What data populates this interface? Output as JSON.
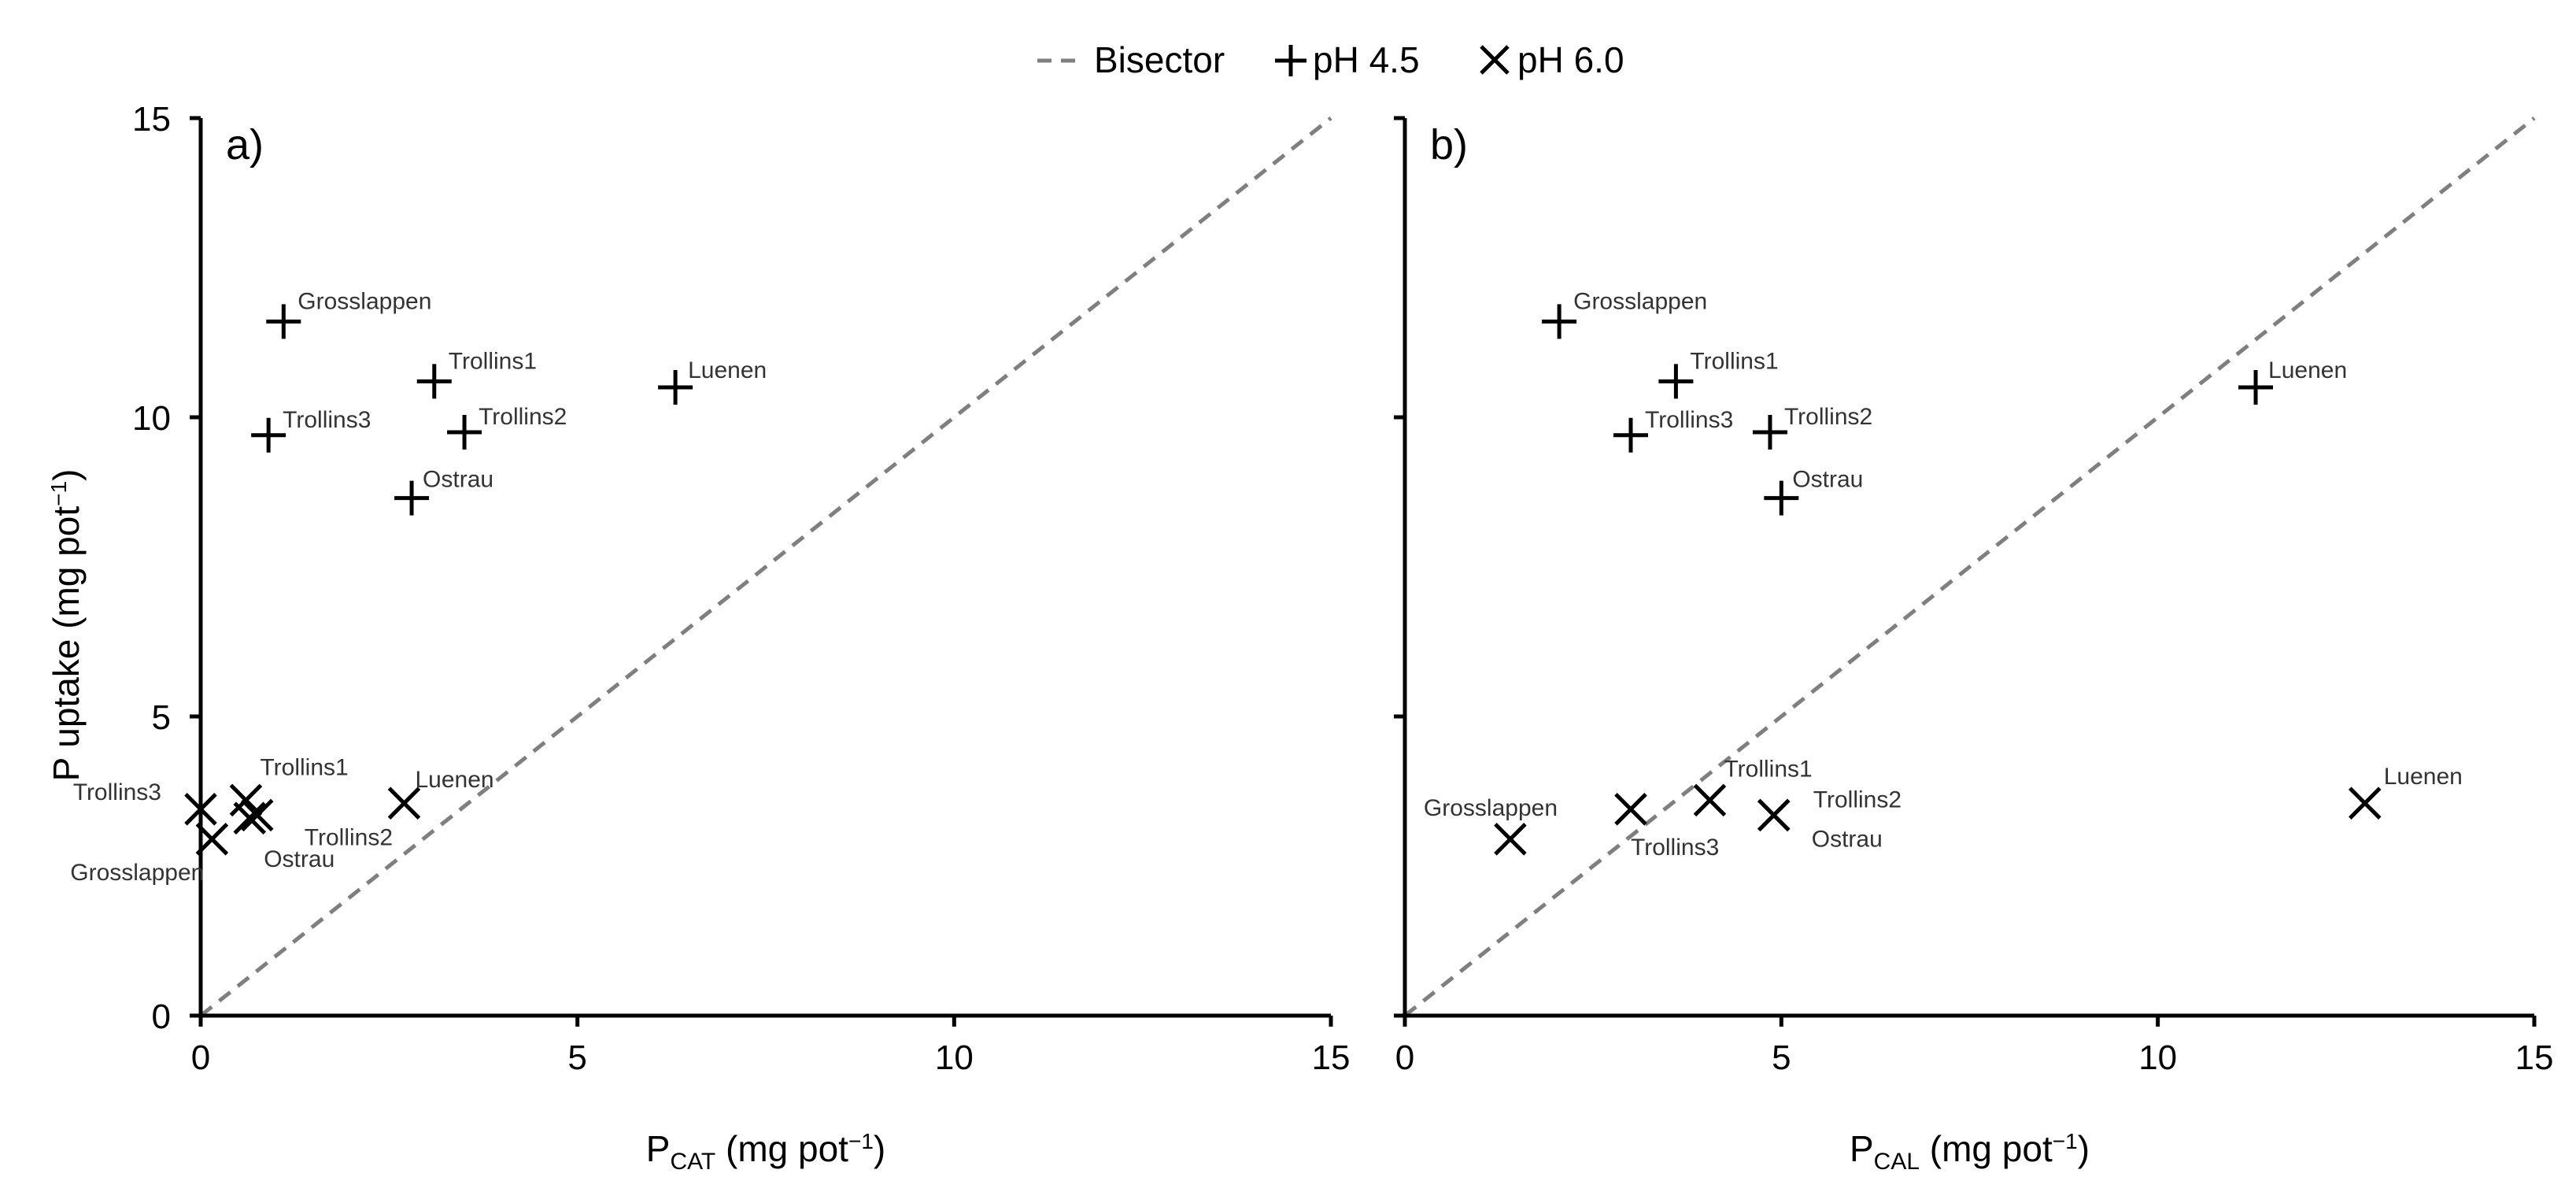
{
  "legend": {
    "bisector_label": "Bisector",
    "ph45_label": "pH 4.5",
    "ph60_label": "pH 6.0"
  },
  "y_axis": {
    "label_main": "P uptake (mg pot",
    "label_sup": "−1",
    "label_close": ")"
  },
  "chart_data": [
    {
      "type": "scatter",
      "panel_label": "a)",
      "xlabel_main": "P",
      "xlabel_sub": "CAT",
      "xlabel_rest": " (mg pot",
      "xlabel_sup": "−1",
      "xlabel_close": ")",
      "ylabel": "P uptake (mg pot−1)",
      "xlim": [
        0,
        15
      ],
      "ylim": [
        0,
        15
      ],
      "xticks": [
        "0",
        "5",
        "10",
        "15"
      ],
      "yticks": [
        "0",
        "5",
        "10",
        "15"
      ],
      "series": [
        {
          "name": "pH 4.5",
          "marker": "plus",
          "points": [
            {
              "label": "Grosslappen",
              "x": 1.1,
              "y": 11.6
            },
            {
              "label": "Trollins1",
              "x": 3.1,
              "y": 10.6
            },
            {
              "label": "Trollins3",
              "x": 0.9,
              "y": 9.7
            },
            {
              "label": "Trollins2",
              "x": 3.5,
              "y": 9.75
            },
            {
              "label": "Ostrau",
              "x": 2.8,
              "y": 8.65
            },
            {
              "label": "Luenen",
              "x": 6.3,
              "y": 10.5
            }
          ]
        },
        {
          "name": "pH 6.0",
          "marker": "cross",
          "points": [
            {
              "label": "Trollins3",
              "x": 0.0,
              "y": 3.45
            },
            {
              "label": "Trollins1",
              "x": 0.6,
              "y": 3.6
            },
            {
              "label": "Trollins2",
              "x": 0.75,
              "y": 3.35
            },
            {
              "label": "Ostrau",
              "x": 0.65,
              "y": 3.3
            },
            {
              "label": "Grosslappen",
              "x": 0.15,
              "y": 2.95
            },
            {
              "label": "Luenen",
              "x": 2.7,
              "y": 3.55
            }
          ]
        }
      ]
    },
    {
      "type": "scatter",
      "panel_label": "b)",
      "xlabel_main": "P",
      "xlabel_sub": "CAL",
      "xlabel_rest": " (mg pot",
      "xlabel_sup": "−1",
      "xlabel_close": ")",
      "ylabel": "P uptake (mg pot−1)",
      "xlim": [
        0,
        15
      ],
      "ylim": [
        0,
        15
      ],
      "xticks": [
        "0",
        "5",
        "10",
        "15"
      ],
      "yticks": [
        "0",
        "5",
        "10",
        "15"
      ],
      "series": [
        {
          "name": "pH 4.5",
          "marker": "plus",
          "points": [
            {
              "label": "Grosslappen",
              "x": 2.05,
              "y": 11.6
            },
            {
              "label": "Trollins1",
              "x": 3.6,
              "y": 10.6
            },
            {
              "label": "Trollins3",
              "x": 3.0,
              "y": 9.7
            },
            {
              "label": "Trollins2",
              "x": 4.85,
              "y": 9.75
            },
            {
              "label": "Ostrau",
              "x": 5.0,
              "y": 8.65
            },
            {
              "label": "Luenen",
              "x": 11.3,
              "y": 10.5
            }
          ]
        },
        {
          "name": "pH 6.0",
          "marker": "cross",
          "points": [
            {
              "label": "Grosslappen",
              "x": 1.4,
              "y": 2.95
            },
            {
              "label": "Trollins3",
              "x": 3.0,
              "y": 3.45
            },
            {
              "label": "Trollins1",
              "x": 4.05,
              "y": 3.6
            },
            {
              "label": "Trollins2",
              "x": 4.9,
              "y": 3.35
            },
            {
              "label": "Ostrau",
              "x": 4.9,
              "y": 3.35
            },
            {
              "label": "Luenen",
              "x": 12.75,
              "y": 3.55
            }
          ]
        }
      ]
    }
  ]
}
